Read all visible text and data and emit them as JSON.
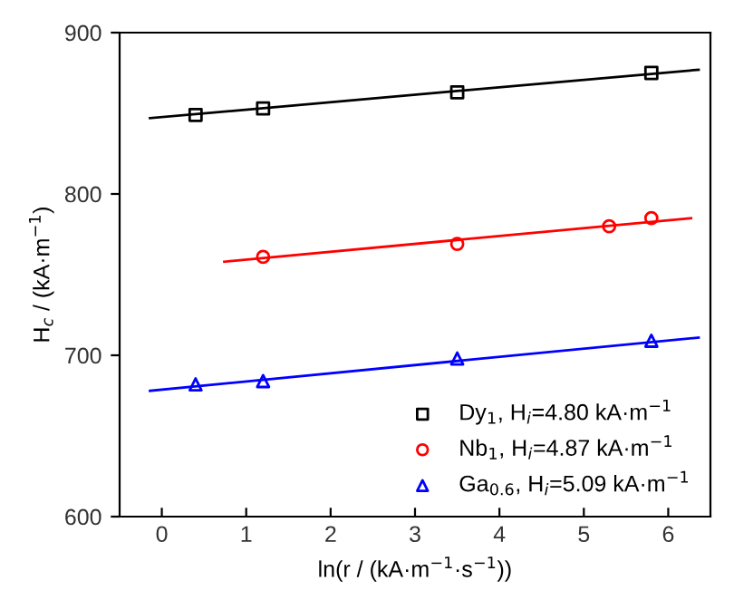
{
  "chart_data": {
    "type": "scatter",
    "xlabel": "ln(r / (kA·m$^{−1}$·s$^{−1}$))",
    "ylabel": "H$_{c}$ / (kA·m$^{−1}$)",
    "xlim": [
      -0.5,
      6.5
    ],
    "xticks": [
      0,
      1,
      2,
      3,
      4,
      5,
      6
    ],
    "ylim": [
      600,
      900
    ],
    "yticks": [
      600,
      700,
      800,
      900
    ],
    "grid": false,
    "legend": "bottom right",
    "series": [
      {
        "name": "Dy$_{1}$, H$_{i}$=4.80 kA·m$^{−1}$",
        "marker": "square",
        "color": "#000000",
        "x": [
          0.4,
          1.2,
          3.5,
          5.8
        ],
        "values": [
          849,
          853,
          863,
          875
        ]
      },
      {
        "name": "Nb$_{1}$, H$_{i}$=4.87 kA·m$^{−1}$",
        "marker": "circle",
        "color": "#ff0000",
        "x": [
          1.2,
          3.5,
          5.3,
          5.8
        ],
        "values": [
          761,
          769,
          780,
          785
        ]
      },
      {
        "name": "Ga$_{0.6}$, H$_{i}$=5.09 kA·m$^{−1}$",
        "marker": "triangle",
        "color": "#0000ff",
        "x": [
          0.4,
          1.2,
          3.5,
          5.8
        ],
        "values": [
          682,
          684,
          698,
          709
        ]
      },
      {
        "type": "line",
        "marker": "none",
        "line_style": "solid",
        "color": "#000000",
        "x": [
          -0.14,
          6.36
        ],
        "values": [
          847,
          877
        ]
      },
      {
        "type": "line",
        "marker": "none",
        "line_style": "solid",
        "color": "#ff0000",
        "x": [
          0.74,
          6.27
        ],
        "values": [
          758,
          785
        ]
      },
      {
        "type": "line",
        "marker": "none",
        "line_style": "solid",
        "color": "#0000ff",
        "x": [
          -0.14,
          6.36
        ],
        "values": [
          678,
          711
        ]
      }
    ]
  }
}
